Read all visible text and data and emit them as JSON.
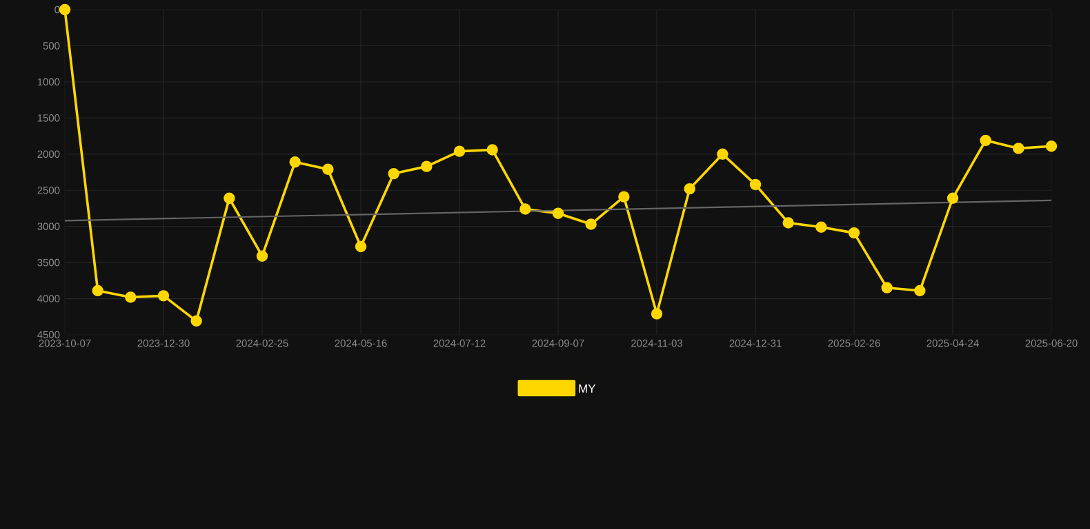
{
  "chart_data": {
    "type": "line",
    "categories": [
      "2023-10-07",
      null,
      null,
      "2023-12-30",
      null,
      null,
      "2024-02-25",
      null,
      null,
      "2024-05-16",
      null,
      null,
      "2024-07-12",
      null,
      null,
      "2024-09-07",
      null,
      null,
      "2024-11-03",
      null,
      null,
      "2024-12-31",
      null,
      null,
      "2025-02-26",
      null,
      null,
      "2025-04-24",
      null,
      null,
      "2025-06-20"
    ],
    "series": [
      {
        "name": "MY",
        "color": "#ffd700",
        "marker": "circle",
        "values": [
          0,
          3890,
          3980,
          3960,
          4310,
          2610,
          3410,
          2110,
          2210,
          3280,
          2270,
          2170,
          1960,
          1940,
          2760,
          2820,
          2970,
          2590,
          4210,
          2480,
          2000,
          2420,
          2950,
          3010,
          3090,
          3850,
          3890,
          2610,
          1810,
          1920,
          1890
        ]
      },
      {
        "type": "line",
        "color": "#666666",
        "marker": "none",
        "values": [
          2920,
          null,
          null,
          null,
          null,
          null,
          null,
          null,
          null,
          null,
          null,
          null,
          null,
          null,
          null,
          null,
          null,
          null,
          null,
          null,
          null,
          null,
          null,
          null,
          null,
          null,
          null,
          null,
          null,
          null,
          2640
        ]
      }
    ],
    "ylim": [
      4500,
      0
    ],
    "yticks": [
      0,
      500,
      1000,
      1500,
      2000,
      2500,
      3000,
      3500,
      4000,
      4500
    ],
    "grid": true,
    "legend": "bottom",
    "line_style": "solid"
  }
}
